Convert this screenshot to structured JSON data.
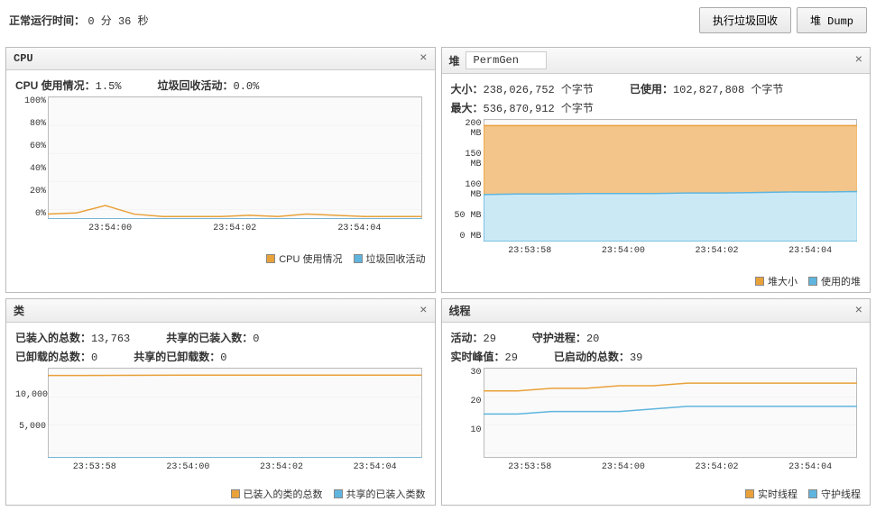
{
  "header": {
    "uptime_label": "正常运行时间：",
    "uptime_value": "0 分 36 秒",
    "gc_button": "执行垃圾回收",
    "dump_button": "堆 Dump"
  },
  "cpu_panel": {
    "title": "CPU",
    "usage_label": "CPU 使用情况：",
    "usage_value": "1.5%",
    "gc_label": "垃圾回收活动：",
    "gc_value": "0.0%",
    "chart": {
      "y_ticks": [
        "100%",
        "80%",
        "60%",
        "40%",
        "20%",
        "0%"
      ],
      "x_ticks": [
        "23:54:00",
        "23:54:02",
        "23:54:04"
      ],
      "ylim": [
        0,
        100
      ],
      "series": [
        {
          "name": "cpu",
          "color": "#e9a13a",
          "points": [
            4,
            5,
            11,
            4,
            2,
            2,
            2,
            3,
            2,
            4,
            3,
            2,
            2,
            2
          ]
        },
        {
          "name": "gc",
          "color": "#5fb5de",
          "points": [
            0,
            0,
            0,
            0,
            0,
            0,
            0,
            0,
            0,
            0,
            0,
            0,
            0,
            0
          ]
        }
      ],
      "grid_color": "#e5e5e5"
    },
    "legend": [
      {
        "color": "#e9a13a",
        "label": "CPU 使用情况"
      },
      {
        "color": "#5fb5de",
        "label": "垃圾回收活动"
      }
    ]
  },
  "heap_panel": {
    "title": "堆",
    "tab": "PermGen",
    "size_label": "大小：",
    "size_value": "238,026,752 个字节",
    "used_label": "已使用：",
    "used_value": "102,827,808 个字节",
    "max_label": "最大：",
    "max_value": "536,870,912 个字节",
    "chart": {
      "y_ticks": [
        "200 MB",
        "150 MB",
        "100 MB",
        "50 MB",
        "0 MB"
      ],
      "x_ticks": [
        "23:53:58",
        "23:54:00",
        "23:54:02",
        "23:54:04"
      ],
      "ylim": [
        0,
        240
      ],
      "area_size": {
        "color": "#f3c58a",
        "line": "#e9a13a",
        "values": [
          227,
          227,
          227,
          227,
          227,
          227,
          227,
          227,
          227,
          227,
          227,
          227
        ]
      },
      "area_used": {
        "color": "#cbe9f5",
        "line": "#5fb5de",
        "values": [
          92,
          93,
          93,
          94,
          94,
          94,
          95,
          95,
          96,
          97,
          97,
          98
        ]
      }
    },
    "legend": [
      {
        "color": "#e9a13a",
        "label": "堆大小"
      },
      {
        "color": "#5fb5de",
        "label": "使用的堆"
      }
    ]
  },
  "class_panel": {
    "title": "类",
    "loaded_label": "已装入的总数：",
    "loaded_value": "13,763",
    "shared_loaded_label": "共享的已装入数：",
    "shared_loaded_value": "0",
    "unloaded_label": "已卸载的总数：",
    "unloaded_value": "0",
    "shared_unloaded_label": "共享的已卸载数：",
    "shared_unloaded_value": "0",
    "chart": {
      "y_ticks": [
        "",
        "10,000",
        "5,000",
        ""
      ],
      "x_ticks": [
        "23:53:58",
        "23:54:00",
        "23:54:02",
        "23:54:04"
      ],
      "ylim": [
        0,
        15000
      ],
      "series": [
        {
          "name": "total",
          "color": "#e9a13a",
          "points": [
            13700,
            13700,
            13720,
            13740,
            13760,
            13760,
            13760,
            13760,
            13760,
            13760,
            13760,
            13760
          ]
        },
        {
          "name": "shared",
          "color": "#5fb5de",
          "points": [
            0,
            0,
            0,
            0,
            0,
            0,
            0,
            0,
            0,
            0,
            0,
            0
          ]
        }
      ]
    },
    "legend": [
      {
        "color": "#e9a13a",
        "label": "已装入的类的总数"
      },
      {
        "color": "#5fb5de",
        "label": "共享的已装入类数"
      }
    ]
  },
  "thread_panel": {
    "title": "线程",
    "active_label": "活动：",
    "active_value": "29",
    "daemon_label": "守护进程：",
    "daemon_value": "20",
    "peak_label": "实时峰值：",
    "peak_value": "29",
    "started_label": "已启动的总数：",
    "started_value": "39",
    "chart": {
      "y_ticks": [
        "30",
        "20",
        "10",
        ""
      ],
      "x_ticks": [
        "23:53:58",
        "23:54:00",
        "23:54:02",
        "23:54:04"
      ],
      "ylim": [
        0,
        35
      ],
      "series": [
        {
          "name": "live",
          "color": "#e9a13a",
          "points": [
            26,
            26,
            27,
            27,
            28,
            28,
            29,
            29,
            29,
            29,
            29,
            29
          ]
        },
        {
          "name": "daemon",
          "color": "#5fb5de",
          "points": [
            17,
            17,
            18,
            18,
            18,
            19,
            20,
            20,
            20,
            20,
            20,
            20
          ]
        }
      ]
    },
    "legend": [
      {
        "color": "#e9a13a",
        "label": "实时线程"
      },
      {
        "color": "#5fb5de",
        "label": "守护线程"
      }
    ]
  }
}
